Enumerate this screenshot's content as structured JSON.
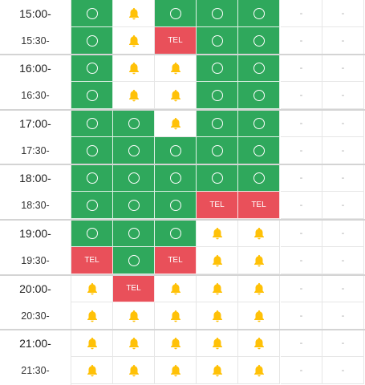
{
  "symbols": {
    "tel_label": "TEL",
    "none_label": "-",
    "bell_color": "#ffc107",
    "available_color": "#2fa85c",
    "tel_color": "#e9505a"
  },
  "rows": [
    {
      "time": "15:00-",
      "cells": [
        "avail",
        "bell",
        "avail",
        "avail",
        "avail",
        "none",
        "none"
      ]
    },
    {
      "time": "15:30-",
      "cells": [
        "avail",
        "bell",
        "tel",
        "avail",
        "avail",
        "none",
        "none"
      ]
    },
    {
      "time": "16:00-",
      "cells": [
        "avail",
        "bell",
        "bell",
        "avail",
        "avail",
        "none",
        "none"
      ]
    },
    {
      "time": "16:30-",
      "cells": [
        "avail",
        "bell",
        "bell",
        "avail",
        "avail",
        "none",
        "none"
      ]
    },
    {
      "time": "17:00-",
      "cells": [
        "avail",
        "avail",
        "bell",
        "avail",
        "avail",
        "none",
        "none"
      ]
    },
    {
      "time": "17:30-",
      "cells": [
        "avail",
        "avail",
        "avail",
        "avail",
        "avail",
        "none",
        "none"
      ]
    },
    {
      "time": "18:00-",
      "cells": [
        "avail",
        "avail",
        "avail",
        "avail",
        "avail",
        "none",
        "none"
      ]
    },
    {
      "time": "18:30-",
      "cells": [
        "avail",
        "avail",
        "avail",
        "tel",
        "tel",
        "none",
        "none"
      ]
    },
    {
      "time": "19:00-",
      "cells": [
        "avail",
        "avail",
        "avail",
        "bell",
        "bell",
        "none",
        "none"
      ]
    },
    {
      "time": "19:30-",
      "cells": [
        "tel",
        "avail",
        "tel",
        "bell",
        "bell",
        "none",
        "none"
      ]
    },
    {
      "time": "20:00-",
      "cells": [
        "bell",
        "tel",
        "bell",
        "bell",
        "bell",
        "none",
        "none"
      ]
    },
    {
      "time": "20:30-",
      "cells": [
        "bell",
        "bell",
        "bell",
        "bell",
        "bell",
        "none",
        "none"
      ]
    },
    {
      "time": "21:00-",
      "cells": [
        "bell",
        "bell",
        "bell",
        "bell",
        "bell",
        "none",
        "none"
      ]
    },
    {
      "time": "21:30-",
      "cells": [
        "bell",
        "bell",
        "bell",
        "bell",
        "bell",
        "none",
        "none"
      ]
    }
  ]
}
